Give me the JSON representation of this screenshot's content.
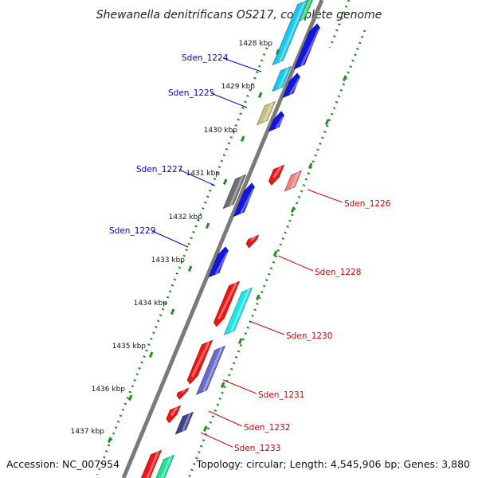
{
  "title": "Shewanella denitrificans OS217, complete genome",
  "accession": "Accession: NC_007954",
  "topology": "Topology: circular; Length: 4,545,906 bp; Genes: 3,880",
  "ticks": [
    "1428 kbp",
    "1429 kbp",
    "1430 kbp",
    "1431 kbp",
    "1432 kbp",
    "1433 kbp",
    "1434 kbp",
    "1435 kbp",
    "1436 kbp",
    "1437 kbp"
  ],
  "genes_forward": [
    "Sden_1224",
    "Sden_1225",
    "Sden_1227",
    "Sden_1229"
  ],
  "genes_reverse": [
    "Sden_1226",
    "Sden_1228",
    "Sden_1230",
    "Sden_1231",
    "Sden_1232",
    "Sden_1233"
  ],
  "colors": {
    "forward_label": "#0000cc",
    "reverse_label": "#dd0000",
    "backbone": "#888888",
    "tick": "#228b22",
    "blue": "#1414e6",
    "cyan": "#17c8f0",
    "aqua": "#1ee6e6",
    "red": "#f01414",
    "pink": "#f08080",
    "olive": "#c8c082",
    "gray": "#707070",
    "slate": "#6a6acc",
    "silver": "#cfcfcf",
    "navy": "#404090",
    "green": "#28d050",
    "mint": "#20e098"
  }
}
